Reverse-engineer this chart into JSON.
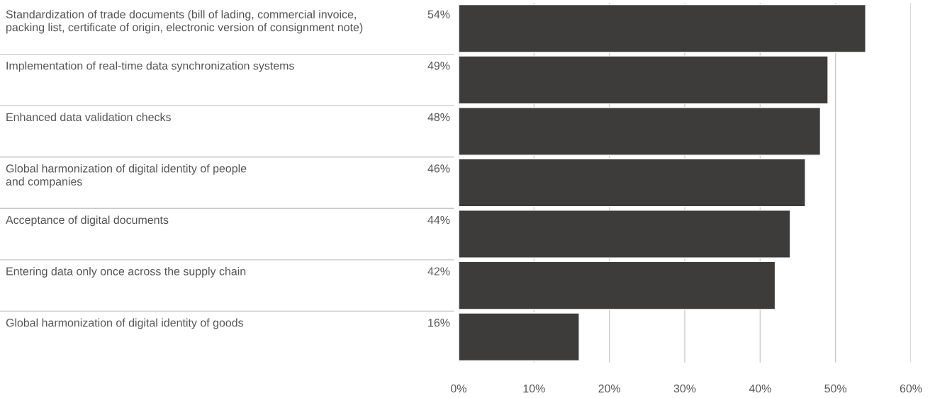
{
  "chart_data": {
    "type": "bar",
    "orientation": "horizontal",
    "categories": [
      "Standardization of trade documents (bill of lading, commercial invoice,\npacking list, certificate of origin, electronic version of consignment note)",
      "Implementation of real-time data synchronization systems",
      "Enhanced data validation checks",
      "Global harmonization of digital identity of people\nand companies",
      "Acceptance of digital documents",
      "Entering data only once across the supply chain",
      "Global harmonization of digital identity of goods"
    ],
    "values": [
      54,
      49,
      48,
      46,
      44,
      42,
      16
    ],
    "value_labels": [
      "54%",
      "49%",
      "48%",
      "46%",
      "44%",
      "42%",
      "16%"
    ],
    "color": "#3d3c3a",
    "xlim": [
      0,
      60
    ],
    "xticks": [
      {
        "value": 0,
        "label": "0%"
      },
      {
        "value": 10,
        "label": "10%"
      },
      {
        "value": 20,
        "label": "20%"
      },
      {
        "value": 30,
        "label": "30%"
      },
      {
        "value": 40,
        "label": "40%"
      },
      {
        "value": 50,
        "label": "50%"
      },
      {
        "value": 60,
        "label": "60%"
      }
    ],
    "grid": "x",
    "legend": false
  }
}
